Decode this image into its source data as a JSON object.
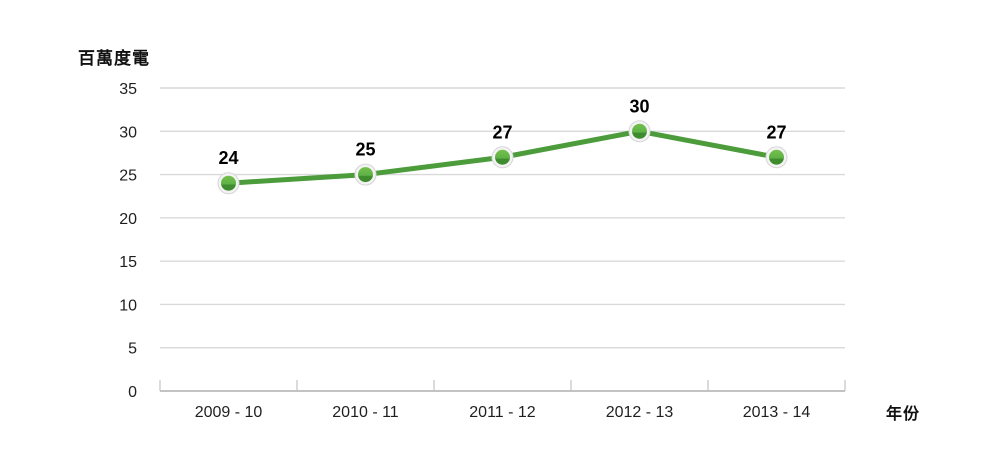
{
  "chart_data": {
    "type": "line",
    "title": "",
    "ylabel": "百萬度電",
    "xlabel": "年份",
    "categories": [
      "2009 - 10",
      "2010 - 11",
      "2011 - 12",
      "2012 - 13",
      "2013 - 14"
    ],
    "values": [
      24,
      25,
      27,
      30,
      27
    ],
    "data_labels": [
      24,
      25,
      27,
      30,
      27
    ],
    "ylim": [
      0,
      35
    ],
    "y_tick_step": 5,
    "y_ticks": [
      0,
      5,
      10,
      15,
      20,
      25,
      30,
      35
    ],
    "grid": "horizontal-only",
    "legend": "none",
    "colors": {
      "line": "#4c9c3c",
      "marker_top": "#74c04e",
      "marker_mid": "#5fb246",
      "marker_dark": "#3f8c2f",
      "marker_ring_fill": "#f3f3f3",
      "marker_ring_stroke": "#d6d6d8",
      "gridline": "#d9d9dc",
      "axis_line": "#c3c3c6",
      "tick_label": "#1f1f1f",
      "data_label": "#000000"
    }
  }
}
